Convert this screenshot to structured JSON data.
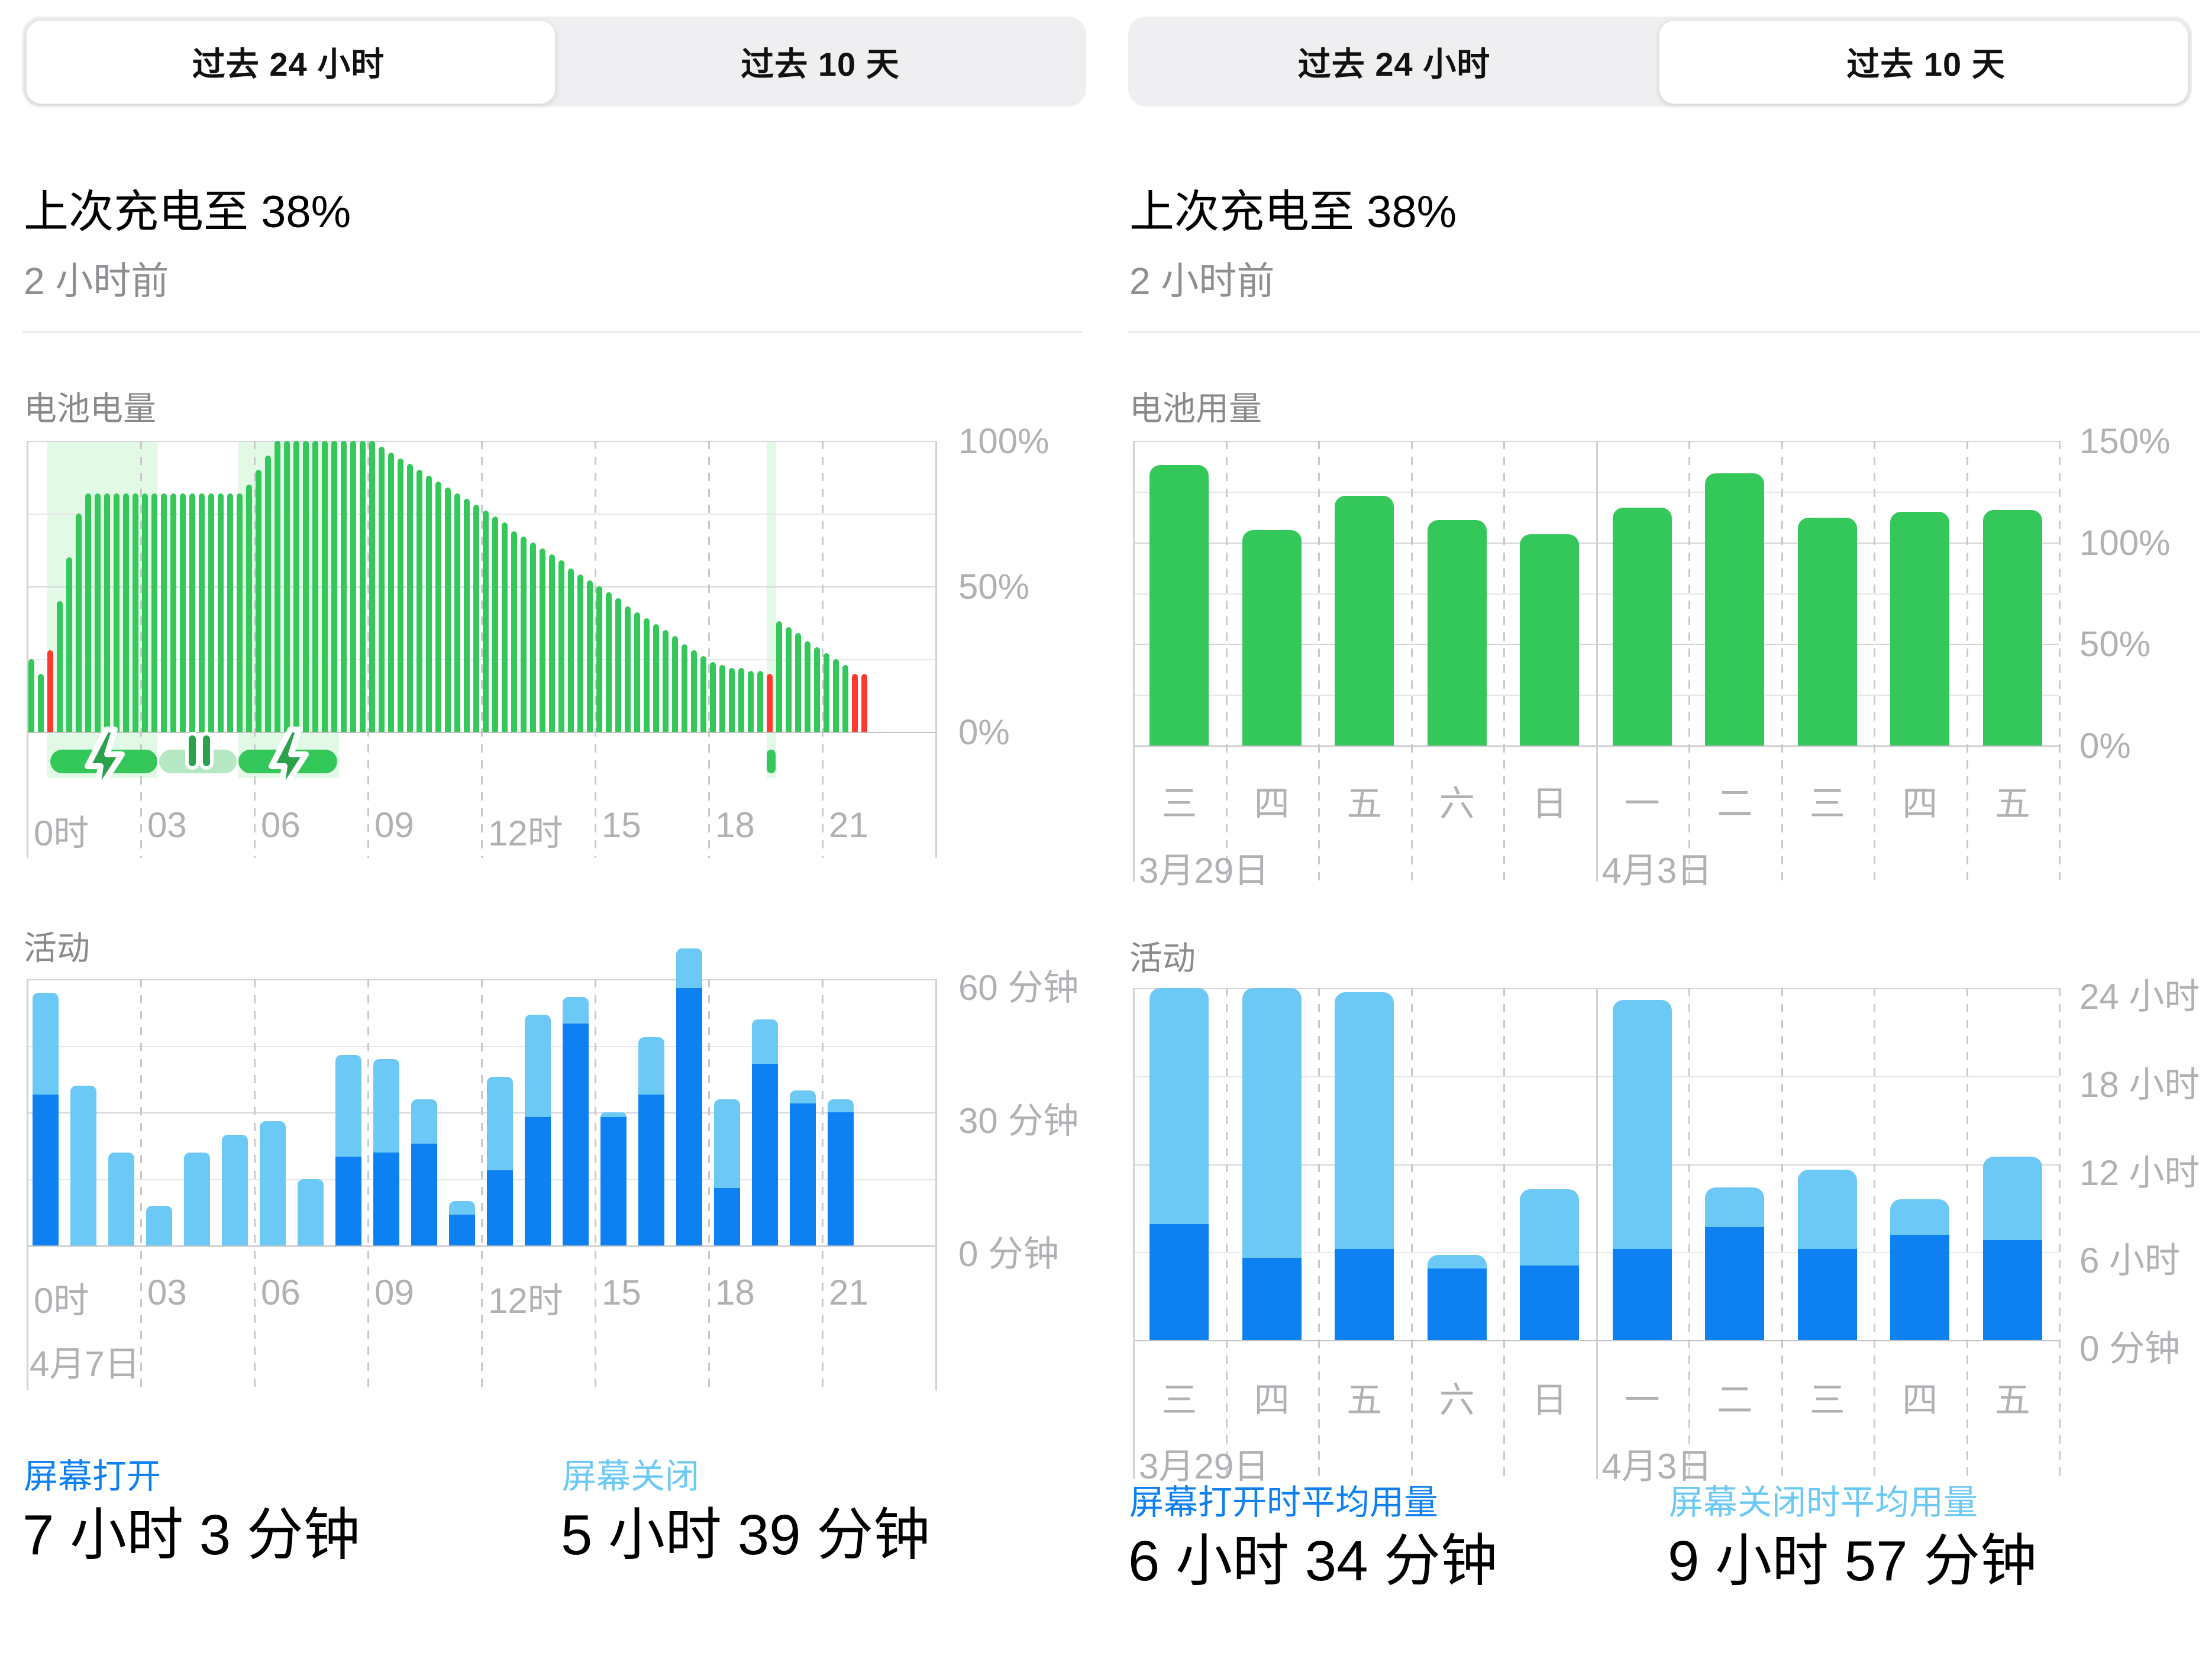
{
  "colors": {
    "green": "#34c759",
    "green_charge_fill": "rgba(76,217,100,0.16)",
    "pause_pill_green": "#b7e8c4",
    "bolt_green": "#2ba14c",
    "red": "#ff3b30",
    "blue": "#0d80f2",
    "light_blue": "#6cc9f5",
    "axis_text": "#b0b0b5",
    "section_text": "#8a8a8e"
  },
  "left_panel": {
    "tabs": [
      {
        "label": "过去 24 小时",
        "selected": true
      },
      {
        "label": "过去 10 天",
        "selected": false
      }
    ],
    "title": "上次充电至 38%",
    "subtitle": "2 小时前",
    "battery_section_title": "电池电量",
    "activity_section_title": "活动",
    "stats": [
      {
        "label": "屏幕打开",
        "value": "7 小时 3 分钟"
      },
      {
        "label": "屏幕关闭",
        "value": "5 小时 39 分钟"
      }
    ]
  },
  "right_panel": {
    "tabs": [
      {
        "label": "过去 24 小时",
        "selected": false
      },
      {
        "label": "过去 10 天",
        "selected": true
      }
    ],
    "title": "上次充电至 38%",
    "subtitle": "2 小时前",
    "battery_section_title": "电池用量",
    "activity_section_title": "活动",
    "stats": [
      {
        "label": "屏幕打开时平均用量",
        "value": "6 小时 34 分钟"
      },
      {
        "label": "屏幕关闭时平均用量",
        "value": "9 小时 57 分钟"
      }
    ]
  },
  "chart_data": [
    {
      "id": "battery-level-24h",
      "type": "bar",
      "title": "电池电量",
      "interval_minutes": 15,
      "ylim": [
        0,
        100
      ],
      "y_ticks": [
        {
          "label": "100%",
          "value": 100
        },
        {
          "label": "50%",
          "value": 50
        },
        {
          "label": "0%",
          "value": 0
        }
      ],
      "x_ticks": [
        {
          "label": "0时",
          "hour": 0
        },
        {
          "label": "03",
          "hour": 3
        },
        {
          "label": "06",
          "hour": 6
        },
        {
          "label": "09",
          "hour": 9
        },
        {
          "label": "12时",
          "hour": 12
        },
        {
          "label": "15",
          "hour": 15
        },
        {
          "label": "18",
          "hour": 18
        },
        {
          "label": "21",
          "hour": 21
        }
      ],
      "values": [
        25,
        20,
        28,
        45,
        60,
        75,
        82,
        82,
        82,
        82,
        82,
        82,
        82,
        82,
        82,
        82,
        82,
        82,
        82,
        82,
        82,
        82,
        82,
        85,
        90,
        95,
        100,
        100,
        100,
        100,
        100,
        100,
        100,
        100,
        100,
        100,
        100,
        98,
        96,
        94,
        92,
        90,
        88,
        86,
        84,
        82,
        80,
        78,
        76,
        74,
        72,
        69,
        67,
        65,
        63,
        61,
        59,
        56,
        54,
        52,
        50,
        48,
        46,
        43,
        41,
        39,
        37,
        35,
        33,
        30,
        28,
        26,
        24,
        23,
        22,
        22,
        21,
        21,
        20,
        38,
        36,
        34,
        31,
        29,
        27,
        25,
        23,
        20,
        20
      ],
      "red_indices": [
        2,
        78,
        87,
        88
      ],
      "charging_regions_hours": [
        [
          0.55,
          3.45
        ],
        [
          5.6,
          8.25
        ],
        [
          19.55,
          19.8
        ]
      ],
      "charging_indicator": [
        {
          "state": "charging",
          "from_hour": 0.63,
          "to_hour": 3.45,
          "icon": "bolt"
        },
        {
          "state": "on-hold",
          "from_hour": 3.5,
          "to_hour": 5.55,
          "icon": "pause"
        },
        {
          "state": "charging",
          "from_hour": 5.6,
          "to_hour": 8.2,
          "icon": "bolt"
        },
        {
          "state": "charging",
          "from_hour": 19.55,
          "to_hour": 19.78,
          "icon": "none"
        }
      ]
    },
    {
      "id": "activity-24h",
      "type": "stacked-bar",
      "title": "活动",
      "ylim_minutes": [
        0,
        60
      ],
      "y_ticks": [
        {
          "label": "60 分钟",
          "value": 60
        },
        {
          "label": "30 分钟",
          "value": 30
        },
        {
          "label": "0 分钟",
          "value": 0
        }
      ],
      "x_ticks": [
        {
          "label": "0时",
          "hour": 0
        },
        {
          "label": "03",
          "hour": 3
        },
        {
          "label": "06",
          "hour": 6
        },
        {
          "label": "09",
          "hour": 9
        },
        {
          "label": "12时",
          "hour": 12
        },
        {
          "label": "15",
          "hour": 15
        },
        {
          "label": "18",
          "hour": 18
        },
        {
          "label": "21",
          "hour": 21
        }
      ],
      "date_label": "4月7日",
      "series": [
        {
          "name": "屏幕打开",
          "values_minutes": [
            34,
            0,
            0,
            0,
            0,
            0,
            0,
            0,
            20,
            21,
            23,
            7,
            17,
            29,
            50,
            29,
            34,
            58,
            13,
            41,
            32,
            30
          ]
        },
        {
          "name": "屏幕关闭",
          "values_minutes": [
            23,
            36,
            21,
            9,
            21,
            25,
            28,
            15,
            23,
            21,
            10,
            3,
            21,
            23,
            6,
            1,
            13,
            9,
            20,
            10,
            3,
            3
          ]
        }
      ]
    },
    {
      "id": "battery-usage-10d",
      "type": "bar",
      "title": "电池用量",
      "ylim": [
        0,
        150
      ],
      "y_ticks": [
        {
          "label": "150%",
          "value": 150
        },
        {
          "label": "100%",
          "value": 100
        },
        {
          "label": "50%",
          "value": 50
        },
        {
          "label": "0%",
          "value": 0
        }
      ],
      "categories": [
        "三",
        "四",
        "五",
        "六",
        "日",
        "一",
        "二",
        "三",
        "四",
        "五"
      ],
      "date_labels": [
        {
          "index": 0,
          "label": "3月29日"
        },
        {
          "index": 5,
          "label": "4月3日"
        }
      ],
      "week_divider_index": 5,
      "values": [
        138,
        106,
        123,
        111,
        104,
        117,
        134,
        112,
        115,
        116
      ]
    },
    {
      "id": "activity-10d",
      "type": "stacked-bar",
      "title": "活动",
      "ylim_hours": [
        0,
        24
      ],
      "y_ticks": [
        {
          "label": "24 小时",
          "value": 24
        },
        {
          "label": "18 小时",
          "value": 18
        },
        {
          "label": "12 小时",
          "value": 12
        },
        {
          "label": "6 小时",
          "value": 6
        },
        {
          "label": "0 分钟",
          "value": 0
        }
      ],
      "categories": [
        "三",
        "四",
        "五",
        "六",
        "日",
        "一",
        "二",
        "三",
        "四",
        "五"
      ],
      "date_labels": [
        {
          "index": 0,
          "label": "3月29日"
        },
        {
          "index": 5,
          "label": "4月3日"
        }
      ],
      "week_divider_index": 5,
      "series": [
        {
          "name": "屏幕打开时平均用量",
          "values_hours": [
            7.9,
            5.6,
            6.2,
            4.9,
            5.1,
            6.2,
            7.7,
            6.2,
            7.2,
            6.8
          ]
        },
        {
          "name": "屏幕关闭时平均用量",
          "values_hours": [
            16.1,
            18.4,
            17.5,
            0.9,
            5.2,
            17.0,
            2.7,
            5.4,
            2.4,
            5.7
          ]
        }
      ]
    }
  ]
}
